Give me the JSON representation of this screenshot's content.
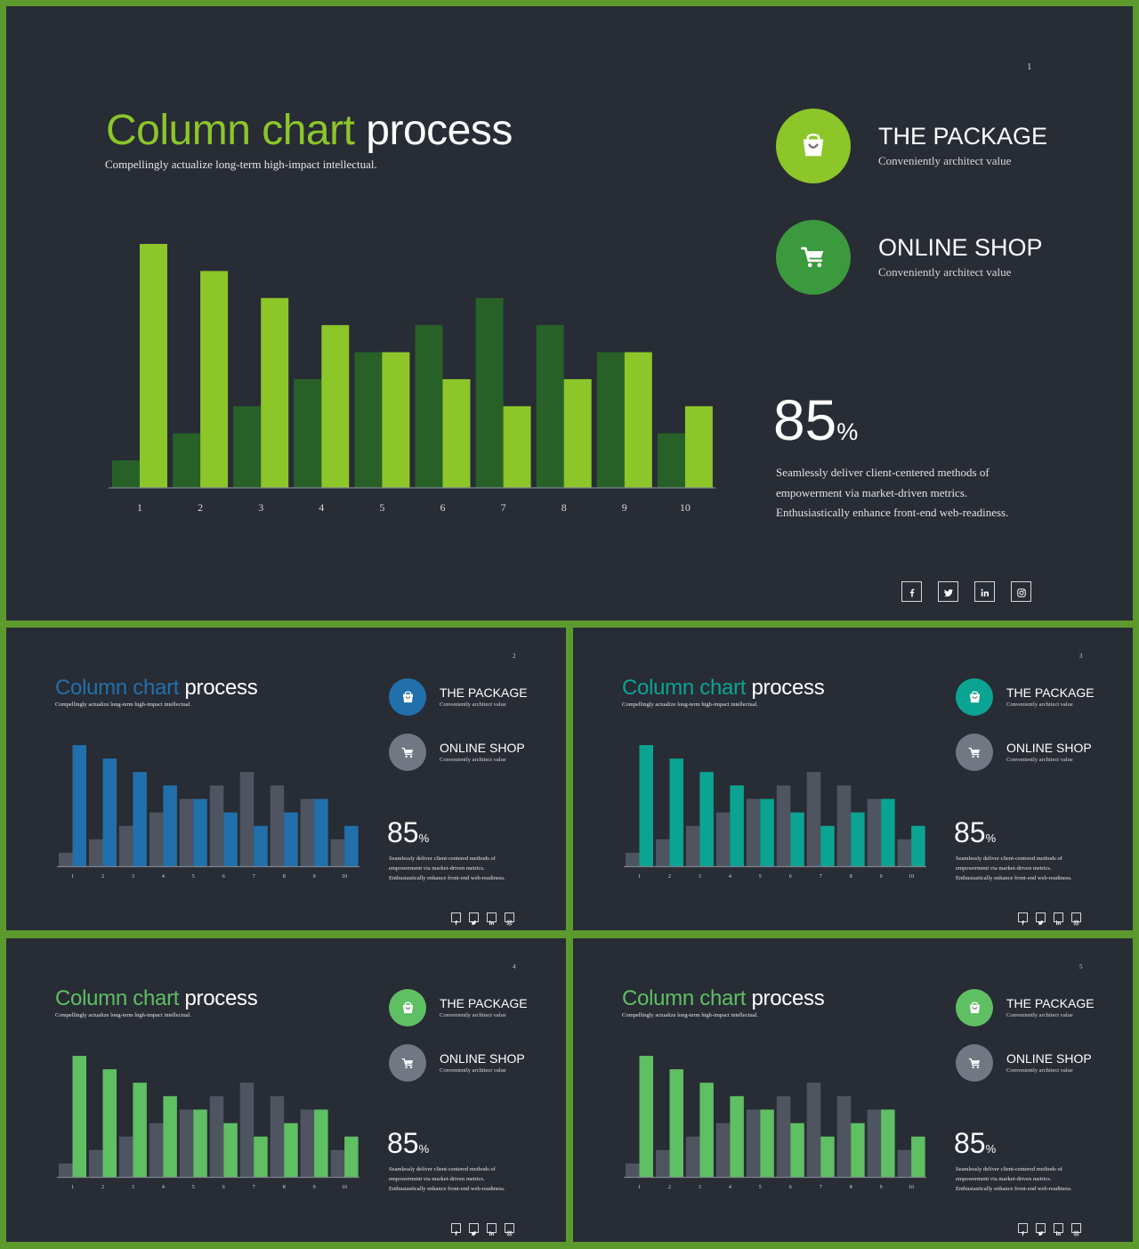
{
  "colors": {
    "frame": "#5d9a2e",
    "background": "#282c35",
    "gray_bar": "#4e5561",
    "gray_circle": "#717883"
  },
  "icons": {
    "package": "shopping-bag-icon",
    "shop": "shopping-cart-icon",
    "social": [
      "facebook-icon",
      "twitter-icon",
      "linkedin-icon",
      "instagram-icon"
    ]
  },
  "slides": [
    {
      "number": "1",
      "theme": {
        "accent": "#8cc629",
        "dark_bar": "#276128",
        "circle1": "#8cc629",
        "circle2": "#3b9a3e"
      },
      "title": {
        "highlight": "Column chart",
        "rest": " process"
      },
      "subtitle": "Compellingly actualize long-term high-impact intellectual.",
      "feature1": {
        "title": "THE PACKAGE",
        "subtitle": "Conveniently architect value"
      },
      "feature2": {
        "title": "ONLINE SHOP",
        "subtitle": "Conveniently architect value"
      },
      "stat": {
        "value": "85",
        "unit": "%"
      },
      "description": [
        "Seamlessly deliver client-centered methods of",
        "empowerment via market-driven metrics.",
        "Enthusiastically enhance front-end web-readiness."
      ]
    },
    {
      "number": "2",
      "theme": {
        "accent": "#2170ac",
        "dark_bar": "#4e5561",
        "circle1": "#2170ac",
        "circle2": "#717883"
      },
      "title": {
        "highlight": "Column chart",
        "rest": " process"
      },
      "subtitle": "Compellingly actualize long-term high-impact intellectual.",
      "feature1": {
        "title": "THE PACKAGE",
        "subtitle": "Conveniently architect value"
      },
      "feature2": {
        "title": "ONLINE SHOP",
        "subtitle": "Conveniently architect value"
      },
      "stat": {
        "value": "85",
        "unit": "%"
      },
      "description": [
        "Seamlessly deliver client-centered methods of",
        "empowerment via market-driven metrics.",
        "Enthusiastically enhance front-end web-readiness."
      ]
    },
    {
      "number": "3",
      "theme": {
        "accent": "#0ba492",
        "dark_bar": "#4e5561",
        "circle1": "#0ba492",
        "circle2": "#717883"
      },
      "title": {
        "highlight": "Column chart",
        "rest": " process"
      },
      "subtitle": "Compellingly actualize long-term high-impact intellectual.",
      "feature1": {
        "title": "THE PACKAGE",
        "subtitle": "Conveniently architect value"
      },
      "feature2": {
        "title": "ONLINE SHOP",
        "subtitle": "Conveniently architect value"
      },
      "stat": {
        "value": "85",
        "unit": "%"
      },
      "description": [
        "Seamlessly deliver client-centered methods of",
        "empowerment via market-driven metrics.",
        "Enthusiastically enhance front-end web-readiness."
      ]
    },
    {
      "number": "4",
      "theme": {
        "accent": "#5fbf63",
        "dark_bar": "#4e5561",
        "circle1": "#5fbf63",
        "circle2": "#717883"
      },
      "title": {
        "highlight": "Column chart",
        "rest": " process"
      },
      "subtitle": "Compellingly actualize long-term high-impact intellectual.",
      "feature1": {
        "title": "THE PACKAGE",
        "subtitle": "Conveniently architect value"
      },
      "feature2": {
        "title": "ONLINE SHOP",
        "subtitle": "Conveniently architect value"
      },
      "stat": {
        "value": "85",
        "unit": "%"
      },
      "description": [
        "Seamlessly deliver client-centered methods of",
        "empowerment via market-driven metrics.",
        "Enthusiastically enhance front-end web-readiness."
      ]
    },
    {
      "number": "5",
      "theme": {
        "accent": "#5fbf63",
        "dark_bar": "#4e5561",
        "circle1": "#5fbf63",
        "circle2": "#717883"
      },
      "title": {
        "highlight": "Column chart",
        "rest": " process"
      },
      "subtitle": "Compellingly actualize long-term high-impact intellectual.",
      "feature1": {
        "title": "THE PACKAGE",
        "subtitle": "Conveniently architect value"
      },
      "feature2": {
        "title": "ONLINE SHOP",
        "subtitle": "Conveniently architect value"
      },
      "stat": {
        "value": "85",
        "unit": "%"
      },
      "description": [
        "Seamlessly deliver client-centered methods of",
        "empowerment via market-driven metrics.",
        "Enthusiastically enhance front-end web-readiness."
      ]
    }
  ],
  "chart_data": [
    {
      "type": "bar",
      "categories": [
        "1",
        "2",
        "3",
        "4",
        "5",
        "6",
        "7",
        "8",
        "9",
        "10"
      ],
      "series": [
        {
          "values": [
            1,
            2,
            3,
            4,
            5,
            6,
            7,
            6,
            5,
            2
          ]
        },
        {
          "values": [
            9,
            8,
            7,
            6,
            5,
            4,
            3,
            4,
            5,
            3
          ]
        }
      ],
      "ylim": [
        0,
        9
      ],
      "grid": false,
      "legend": "none"
    },
    {
      "type": "bar",
      "categories": [
        "1",
        "2",
        "3",
        "4",
        "5",
        "6",
        "7",
        "8",
        "9",
        "10"
      ],
      "series": [
        {
          "values": [
            1,
            2,
            3,
            4,
            5,
            6,
            7,
            6,
            5,
            2
          ]
        },
        {
          "values": [
            9,
            8,
            7,
            6,
            5,
            4,
            3,
            4,
            5,
            3
          ]
        }
      ],
      "ylim": [
        0,
        9
      ],
      "grid": false,
      "legend": "none"
    },
    {
      "type": "bar",
      "categories": [
        "1",
        "2",
        "3",
        "4",
        "5",
        "6",
        "7",
        "8",
        "9",
        "10"
      ],
      "series": [
        {
          "values": [
            1,
            2,
            3,
            4,
            5,
            6,
            7,
            6,
            5,
            2
          ]
        },
        {
          "values": [
            9,
            8,
            7,
            6,
            5,
            4,
            3,
            4,
            5,
            3
          ]
        }
      ],
      "ylim": [
        0,
        9
      ],
      "grid": false,
      "legend": "none"
    },
    {
      "type": "bar",
      "categories": [
        "1",
        "2",
        "3",
        "4",
        "5",
        "6",
        "7",
        "8",
        "9",
        "10"
      ],
      "series": [
        {
          "values": [
            1,
            2,
            3,
            4,
            5,
            6,
            7,
            6,
            5,
            2
          ]
        },
        {
          "values": [
            9,
            8,
            7,
            6,
            5,
            4,
            3,
            4,
            5,
            3
          ]
        }
      ],
      "ylim": [
        0,
        9
      ],
      "grid": false,
      "legend": "none"
    },
    {
      "type": "bar",
      "categories": [
        "1",
        "2",
        "3",
        "4",
        "5",
        "6",
        "7",
        "8",
        "9",
        "10"
      ],
      "series": [
        {
          "values": [
            1,
            2,
            3,
            4,
            5,
            6,
            7,
            6,
            5,
            2
          ]
        },
        {
          "values": [
            9,
            8,
            7,
            6,
            5,
            4,
            3,
            4,
            5,
            3
          ]
        }
      ],
      "ylim": [
        0,
        9
      ],
      "grid": false,
      "legend": "none"
    }
  ]
}
